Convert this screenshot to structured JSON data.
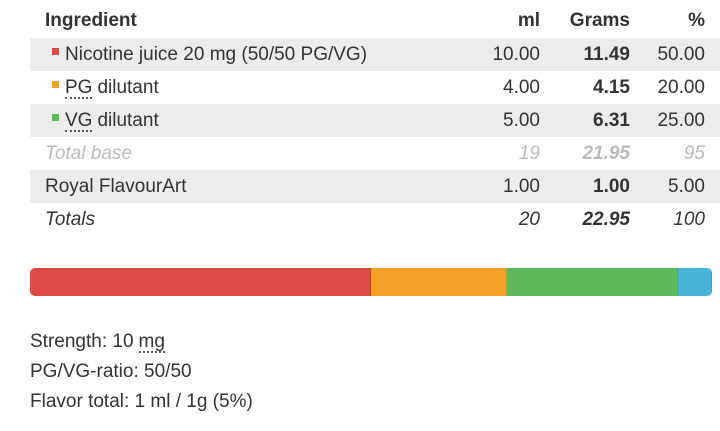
{
  "table": {
    "header": [
      "Ingredient",
      "ml",
      "Grams",
      "%"
    ],
    "rows": [
      {
        "name": "Nicotine juice 20 mg (50/50 PG/VG)",
        "ml": "10.00",
        "grams": "11.49",
        "percent": "50.00",
        "color": "#dc4a45"
      },
      {
        "abbr": "PG",
        "name": "dilutant",
        "ml": "4.00",
        "grams": "4.15",
        "percent": "20.00",
        "color": "#f5a128"
      },
      {
        "abbr": "VG",
        "name": "dilutant",
        "ml": "5.00",
        "grams": "6.31",
        "percent": "25.00",
        "color": "#5cba5a"
      },
      {
        "name": "Total base",
        "ml": "19",
        "grams": "21.95",
        "percent": "95"
      },
      {
        "name": "Royal FlavourArt",
        "ml": "1.00",
        "grams": "1.00",
        "percent": "5.00",
        "color": "#47b3d6"
      },
      {
        "name": "Totals",
        "ml": "20",
        "grams": "22.95",
        "percent": "100"
      }
    ]
  },
  "summary": [
    {
      "text": "Strength: 10",
      "abbr": "mg"
    },
    {
      "text": "PG/VG-ratio: 50/50"
    },
    {
      "text": "Flavor total: 1 ml / 1g (5%)"
    }
  ]
}
